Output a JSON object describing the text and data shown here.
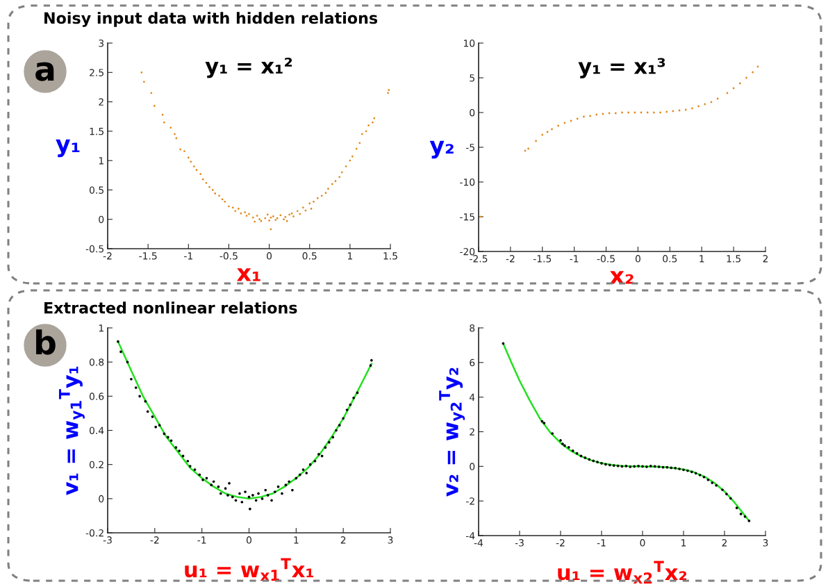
{
  "chart_data": [
    {
      "type": "scatter",
      "title": "Noisy input data with hidden relations",
      "xlabel": "x₁",
      "ylabel": "y₁",
      "annotations": [
        "a",
        "y₁ = x₁²"
      ],
      "marker": "circle",
      "xlim": [
        -2,
        1.5
      ],
      "xticks": [
        -2,
        -1.5,
        -1,
        -0.5,
        0,
        0.5,
        1,
        1.5
      ],
      "ylim": [
        -0.5,
        3
      ],
      "yticks": [
        -0.5,
        0,
        0.5,
        1,
        1.5,
        2,
        2.5,
        3
      ],
      "series": [
        {
          "color": "#e08a1e",
          "x": [
            -1.58,
            -1.55,
            -1.46,
            -1.42,
            -1.32,
            -1.3,
            -1.22,
            -1.17,
            -1.15,
            -1.1,
            -1.05,
            -1.0,
            -0.97,
            -0.93,
            -0.9,
            -0.85,
            -0.82,
            -0.78,
            -0.74,
            -0.7,
            -0.67,
            -0.62,
            -0.58,
            -0.55,
            -0.5,
            -0.45,
            -0.42,
            -0.38,
            -0.35,
            -0.3,
            -0.28,
            -0.25,
            -0.2,
            -0.18,
            -0.15,
            -0.12,
            -0.1,
            -0.05,
            -0.02,
            0.0,
            0.02,
            0.02,
            0.05,
            0.08,
            0.1,
            0.14,
            0.18,
            0.2,
            0.22,
            0.25,
            0.28,
            0.3,
            0.35,
            0.38,
            0.42,
            0.45,
            0.5,
            0.52,
            0.55,
            0.6,
            0.65,
            0.7,
            0.73,
            0.78,
            0.82,
            0.87,
            0.9,
            0.95,
            1.0,
            1.03,
            1.08,
            1.12,
            1.15,
            1.2,
            1.23,
            1.28,
            1.3,
            1.47,
            1.48
          ],
          "values": [
            2.5,
            2.34,
            2.15,
            1.93,
            1.78,
            1.65,
            1.56,
            1.45,
            1.38,
            1.19,
            1.16,
            1.05,
            0.98,
            0.9,
            0.84,
            0.77,
            0.68,
            0.62,
            0.55,
            0.5,
            0.44,
            0.4,
            0.34,
            0.3,
            0.22,
            0.2,
            0.14,
            0.18,
            0.1,
            0.12,
            0.06,
            0.09,
            0.03,
            -0.04,
            0.06,
            0.0,
            -0.03,
            0.02,
            0.08,
            -0.02,
            0.03,
            -0.17,
            0.05,
            -0.01,
            0.02,
            0.07,
            0.0,
            0.04,
            -0.03,
            0.08,
            0.1,
            0.05,
            0.14,
            0.09,
            0.2,
            0.15,
            0.27,
            0.18,
            0.3,
            0.36,
            0.4,
            0.45,
            0.52,
            0.6,
            0.65,
            0.72,
            0.8,
            0.9,
            1.0,
            1.07,
            1.2,
            1.3,
            1.45,
            1.5,
            1.6,
            1.65,
            1.72,
            2.15,
            2.2
          ]
        }
      ]
    },
    {
      "type": "scatter",
      "xlabel": "x₂",
      "ylabel": "y₂",
      "annotations": [
        "y₁ = x₁³"
      ],
      "marker": "circle",
      "xlim": [
        -2.5,
        2
      ],
      "xticks": [
        -2.5,
        -2,
        -1.5,
        -1,
        -0.5,
        0,
        0.5,
        1,
        1.5,
        2
      ],
      "ylim": [
        -20,
        10
      ],
      "yticks": [
        -20,
        -15,
        -10,
        -5,
        0,
        5,
        10
      ],
      "series": [
        {
          "color": "#e08a1e",
          "x": [
            -2.47,
            -1.77,
            -1.72,
            -1.6,
            -1.5,
            -1.42,
            -1.35,
            -1.25,
            -1.15,
            -1.05,
            -0.95,
            -0.85,
            -0.75,
            -0.65,
            -0.55,
            -0.45,
            -0.35,
            -0.25,
            -0.15,
            -0.05,
            0.05,
            0.15,
            0.25,
            0.35,
            0.45,
            0.55,
            0.65,
            0.75,
            0.85,
            0.95,
            1.05,
            1.15,
            1.25,
            1.4,
            1.5,
            1.6,
            1.7,
            1.8,
            1.88
          ],
          "values": [
            -15.0,
            -5.5,
            -5.2,
            -4.1,
            -3.2,
            -2.8,
            -2.4,
            -1.9,
            -1.5,
            -1.2,
            -0.9,
            -0.6,
            -0.5,
            -0.3,
            -0.2,
            -0.1,
            -0.1,
            0.0,
            0.0,
            0.0,
            0.0,
            0.0,
            0.0,
            0.0,
            0.1,
            0.2,
            0.3,
            0.4,
            0.6,
            0.9,
            1.2,
            1.5,
            2.0,
            2.8,
            3.5,
            4.2,
            5.0,
            5.8,
            6.6
          ]
        }
      ]
    },
    {
      "type": "scatter",
      "title": "Extracted nonlinear relations",
      "xlabel": "u₁ = w$_{x1}$$^{T}$x₁",
      "ylabel": "v₁ = w$_{y1}$$^{T}$y₁",
      "annotations": [
        "b"
      ],
      "xlim": [
        -3,
        3
      ],
      "xticks": [
        -3,
        -2,
        -1,
        0,
        1,
        2,
        3
      ],
      "ylim": [
        -0.2,
        1
      ],
      "yticks": [
        -0.2,
        0,
        0.2,
        0.4,
        0.6,
        0.8,
        1
      ],
      "series": [
        {
          "color": "#000000",
          "marker": "circle",
          "x": [
            -2.78,
            -2.72,
            -2.58,
            -2.5,
            -2.4,
            -2.32,
            -2.2,
            -2.15,
            -2.05,
            -1.98,
            -1.9,
            -1.8,
            -1.72,
            -1.65,
            -1.55,
            -1.48,
            -1.4,
            -1.3,
            -1.25,
            -1.15,
            -1.05,
            -0.98,
            -0.9,
            -0.8,
            -0.75,
            -0.65,
            -0.6,
            -0.5,
            -0.45,
            -0.42,
            -0.35,
            -0.28,
            -0.2,
            -0.15,
            -0.08,
            0.0,
            0.02,
            0.08,
            0.15,
            0.2,
            0.28,
            0.35,
            0.4,
            0.48,
            0.55,
            0.62,
            0.7,
            0.78,
            0.85,
            0.92,
            1.0,
            1.08,
            1.15,
            1.22,
            1.3,
            1.4,
            1.48,
            1.55,
            1.62,
            1.7,
            1.78,
            1.85,
            1.92,
            2.0,
            2.08,
            2.15,
            2.22,
            2.3,
            2.58,
            2.6
          ],
          "values": [
            0.92,
            0.86,
            0.8,
            0.7,
            0.65,
            0.6,
            0.57,
            0.51,
            0.48,
            0.42,
            0.43,
            0.38,
            0.36,
            0.34,
            0.3,
            0.28,
            0.25,
            0.22,
            0.19,
            0.17,
            0.14,
            0.11,
            0.12,
            0.08,
            0.1,
            0.07,
            0.03,
            0.06,
            0.02,
            0.09,
            0.01,
            -0.01,
            0.03,
            -0.02,
            0.04,
            0.01,
            -0.06,
            0.02,
            -0.01,
            0.03,
            0.0,
            0.05,
            0.02,
            -0.01,
            0.04,
            0.07,
            0.03,
            0.08,
            0.1,
            0.05,
            0.12,
            0.14,
            0.17,
            0.15,
            0.2,
            0.22,
            0.26,
            0.25,
            0.3,
            0.33,
            0.36,
            0.4,
            0.43,
            0.47,
            0.52,
            0.55,
            0.59,
            0.62,
            0.78,
            0.81
          ]
        },
        {
          "type": "line",
          "color": "#22e01e",
          "x": [
            -2.78,
            -2.5,
            -2.25,
            -2,
            -1.75,
            -1.5,
            -1.25,
            -1,
            -0.75,
            -0.5,
            -0.25,
            0,
            0.25,
            0.5,
            0.75,
            1,
            1.25,
            1.5,
            1.75,
            2,
            2.25,
            2.6
          ],
          "values": [
            0.92,
            0.75,
            0.6,
            0.48,
            0.36,
            0.27,
            0.18,
            0.12,
            0.07,
            0.03,
            0.01,
            0.0,
            0.01,
            0.03,
            0.07,
            0.12,
            0.18,
            0.26,
            0.36,
            0.47,
            0.6,
            0.79
          ]
        }
      ]
    },
    {
      "type": "scatter",
      "xlabel": "u₁ = w$_{x2}$$^{T}$x₂",
      "ylabel": "v₂ = w$_{y2}$$^{T}$y₂",
      "xlim": [
        -4,
        3
      ],
      "xticks": [
        -4,
        -3,
        -2,
        -1,
        0,
        1,
        2,
        3
      ],
      "ylim": [
        -4,
        8
      ],
      "yticks": [
        -4,
        -2,
        0,
        2,
        4,
        6,
        8
      ],
      "series": [
        {
          "color": "#000000",
          "marker": "circle",
          "x": [
            -3.4,
            -2.45,
            -2.4,
            -2.2,
            -2.0,
            -1.95,
            -1.9,
            -1.8,
            -1.7,
            -1.6,
            -1.5,
            -1.4,
            -1.3,
            -1.2,
            -1.1,
            -1.0,
            -0.9,
            -0.8,
            -0.7,
            -0.6,
            -0.5,
            -0.4,
            -0.3,
            -0.2,
            -0.1,
            0.0,
            0.1,
            0.2,
            0.3,
            0.4,
            0.5,
            0.6,
            0.7,
            0.8,
            0.9,
            1.0,
            1.1,
            1.2,
            1.3,
            1.4,
            1.5,
            1.6,
            1.7,
            1.8,
            1.95,
            2.05,
            2.15,
            2.3,
            2.4,
            2.5,
            2.6
          ],
          "values": [
            7.1,
            2.6,
            2.5,
            1.9,
            1.5,
            1.3,
            1.2,
            1.1,
            0.9,
            0.75,
            0.6,
            0.5,
            0.4,
            0.32,
            0.25,
            0.18,
            0.12,
            0.08,
            0.05,
            0.03,
            0.0,
            0.02,
            -0.02,
            0.0,
            0.02,
            0.0,
            -0.02,
            0.02,
            0.0,
            -0.02,
            -0.05,
            -0.05,
            -0.08,
            -0.1,
            -0.15,
            -0.2,
            -0.25,
            -0.32,
            -0.4,
            -0.5,
            -0.62,
            -0.78,
            -0.95,
            -1.1,
            -1.35,
            -1.6,
            -1.85,
            -2.4,
            -2.75,
            -2.9,
            -3.15
          ]
        },
        {
          "type": "line",
          "color": "#22e01e",
          "x": [
            -3.4,
            -3.2,
            -3.0,
            -2.75,
            -2.5,
            -2.25,
            -2,
            -1.75,
            -1.5,
            -1.25,
            -1,
            -0.75,
            -0.5,
            -0.25,
            0,
            0.25,
            0.5,
            0.75,
            1,
            1.25,
            1.5,
            1.75,
            2,
            2.25,
            2.6
          ],
          "values": [
            7.1,
            6.0,
            4.95,
            3.8,
            2.75,
            1.95,
            1.35,
            0.9,
            0.58,
            0.35,
            0.18,
            0.08,
            0.02,
            0.0,
            -0.01,
            -0.02,
            -0.04,
            -0.1,
            -0.18,
            -0.33,
            -0.58,
            -0.95,
            -1.45,
            -2.1,
            -3.15
          ]
        }
      ]
    }
  ]
}
